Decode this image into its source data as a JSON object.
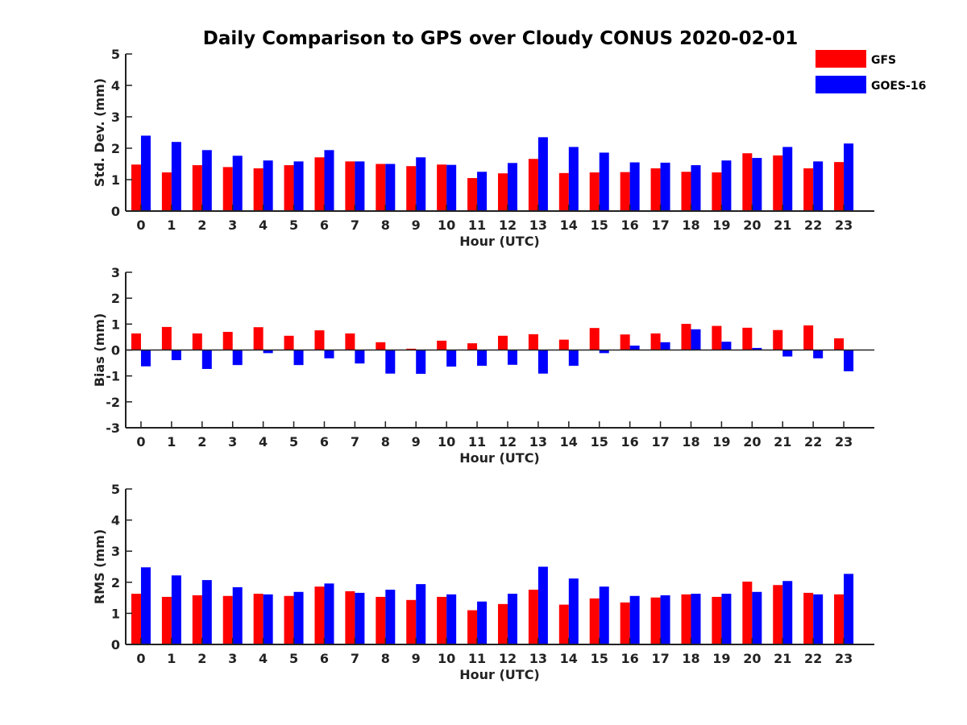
{
  "title": "Daily Comparison to GPS over Cloudy CONUS 2020-02-01",
  "colors": {
    "GFS": "#ff0000",
    "GOES-16": "#0000ff"
  },
  "legend": {
    "placement": "top-right",
    "items": [
      "GFS",
      "GOES-16"
    ]
  },
  "chart_data": [
    {
      "type": "bar",
      "ylabel": "Std. Dev. (mm)",
      "xlabel": "Hour (UTC)",
      "ylim": [
        0,
        5
      ],
      "yticks": [
        "0",
        "1",
        "2",
        "3",
        "4",
        "5"
      ],
      "categories": [
        "0",
        "1",
        "2",
        "3",
        "4",
        "5",
        "6",
        "7",
        "8",
        "9",
        "10",
        "11",
        "12",
        "13",
        "14",
        "15",
        "16",
        "17",
        "18",
        "19",
        "20",
        "21",
        "22",
        "23"
      ],
      "series": [
        {
          "name": "GFS",
          "values": [
            1.48,
            1.23,
            1.46,
            1.4,
            1.36,
            1.46,
            1.71,
            1.58,
            1.5,
            1.43,
            1.48,
            1.05,
            1.2,
            1.66,
            1.21,
            1.23,
            1.24,
            1.36,
            1.25,
            1.23,
            1.84,
            1.77,
            1.36,
            1.56
          ]
        },
        {
          "name": "GOES-16",
          "values": [
            2.4,
            2.2,
            1.94,
            1.76,
            1.61,
            1.58,
            1.94,
            1.58,
            1.5,
            1.71,
            1.47,
            1.25,
            1.53,
            2.35,
            2.04,
            1.86,
            1.55,
            1.54,
            1.46,
            1.61,
            1.69,
            2.04,
            1.58,
            2.15
          ]
        }
      ]
    },
    {
      "type": "bar",
      "ylabel": "Bias (mm)",
      "xlabel": "Hour (UTC)",
      "ylim": [
        -3,
        3
      ],
      "yticks": [
        "-3",
        "-2",
        "-1",
        "0",
        "1",
        "2",
        "3"
      ],
      "categories": [
        "0",
        "1",
        "2",
        "3",
        "4",
        "5",
        "6",
        "7",
        "8",
        "9",
        "10",
        "11",
        "12",
        "13",
        "14",
        "15",
        "16",
        "17",
        "18",
        "19",
        "20",
        "21",
        "22",
        "23"
      ],
      "series": [
        {
          "name": "GFS",
          "values": [
            0.64,
            0.89,
            0.64,
            0.7,
            0.88,
            0.55,
            0.76,
            0.64,
            0.3,
            0.05,
            0.36,
            0.26,
            0.55,
            0.61,
            0.4,
            0.85,
            0.6,
            0.64,
            1.01,
            0.93,
            0.86,
            0.77,
            0.95,
            0.45
          ]
        },
        {
          "name": "GOES-16",
          "values": [
            -0.63,
            -0.39,
            -0.73,
            -0.58,
            -0.12,
            -0.58,
            -0.32,
            -0.52,
            -0.91,
            -0.92,
            -0.64,
            -0.61,
            -0.57,
            -0.91,
            -0.61,
            -0.12,
            0.17,
            0.3,
            0.8,
            0.32,
            0.08,
            -0.25,
            -0.32,
            -0.82
          ]
        }
      ]
    },
    {
      "type": "bar",
      "ylabel": "RMS (mm)",
      "xlabel": "Hour (UTC)",
      "ylim": [
        0,
        5
      ],
      "yticks": [
        "0",
        "1",
        "2",
        "3",
        "4",
        "5"
      ],
      "categories": [
        "0",
        "1",
        "2",
        "3",
        "4",
        "5",
        "6",
        "7",
        "8",
        "9",
        "10",
        "11",
        "12",
        "13",
        "14",
        "15",
        "16",
        "17",
        "18",
        "19",
        "20",
        "21",
        "22",
        "23"
      ],
      "series": [
        {
          "name": "GFS",
          "values": [
            1.63,
            1.53,
            1.58,
            1.56,
            1.63,
            1.56,
            1.86,
            1.71,
            1.53,
            1.43,
            1.53,
            1.1,
            1.3,
            1.76,
            1.28,
            1.48,
            1.35,
            1.51,
            1.61,
            1.53,
            2.02,
            1.91,
            1.66,
            1.61
          ]
        },
        {
          "name": "GOES-16",
          "values": [
            2.48,
            2.22,
            2.07,
            1.84,
            1.61,
            1.69,
            1.96,
            1.66,
            1.76,
            1.94,
            1.61,
            1.38,
            1.63,
            2.5,
            2.12,
            1.86,
            1.56,
            1.58,
            1.63,
            1.63,
            1.69,
            2.04,
            1.61,
            2.27
          ]
        }
      ]
    }
  ]
}
